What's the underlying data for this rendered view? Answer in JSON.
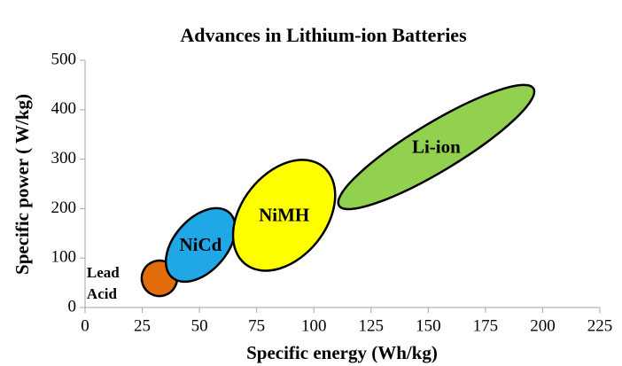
{
  "chart_data": {
    "type": "region",
    "title": "Advances in Lithium-ion Batteries",
    "x_label": "Specific energy (Wh/kg)",
    "y_label": "Specific power ( W/kg)",
    "xlim": [
      0,
      225
    ],
    "xticks": [
      0,
      25,
      50,
      75,
      100,
      125,
      150,
      175,
      200,
      225
    ],
    "ylim": [
      0,
      500
    ],
    "yticks": [
      0,
      100,
      200,
      300,
      400,
      500
    ],
    "grid": false,
    "regions": [
      {
        "label": "Lead Acid",
        "color": "#e36c0a",
        "x": [
          29,
          36
        ],
        "y": [
          27,
          91
        ],
        "width": 15.5,
        "label_position": "left"
      },
      {
        "label": "NiCd",
        "color": "#1fa7e6",
        "x": [
          38,
          63
        ],
        "y": [
          61,
          192
        ],
        "width": 23,
        "label_position": "center"
      },
      {
        "label": "NiMH",
        "color": "#ffff00",
        "x": [
          70,
          104
        ],
        "y": [
          88,
          285
        ],
        "width": 37,
        "label_position": "center"
      },
      {
        "label": "Li-ion",
        "color": "#92d050",
        "x": [
          111,
          196
        ],
        "y": [
          206,
          443
        ],
        "width": 21,
        "label_position": "center"
      }
    ]
  }
}
